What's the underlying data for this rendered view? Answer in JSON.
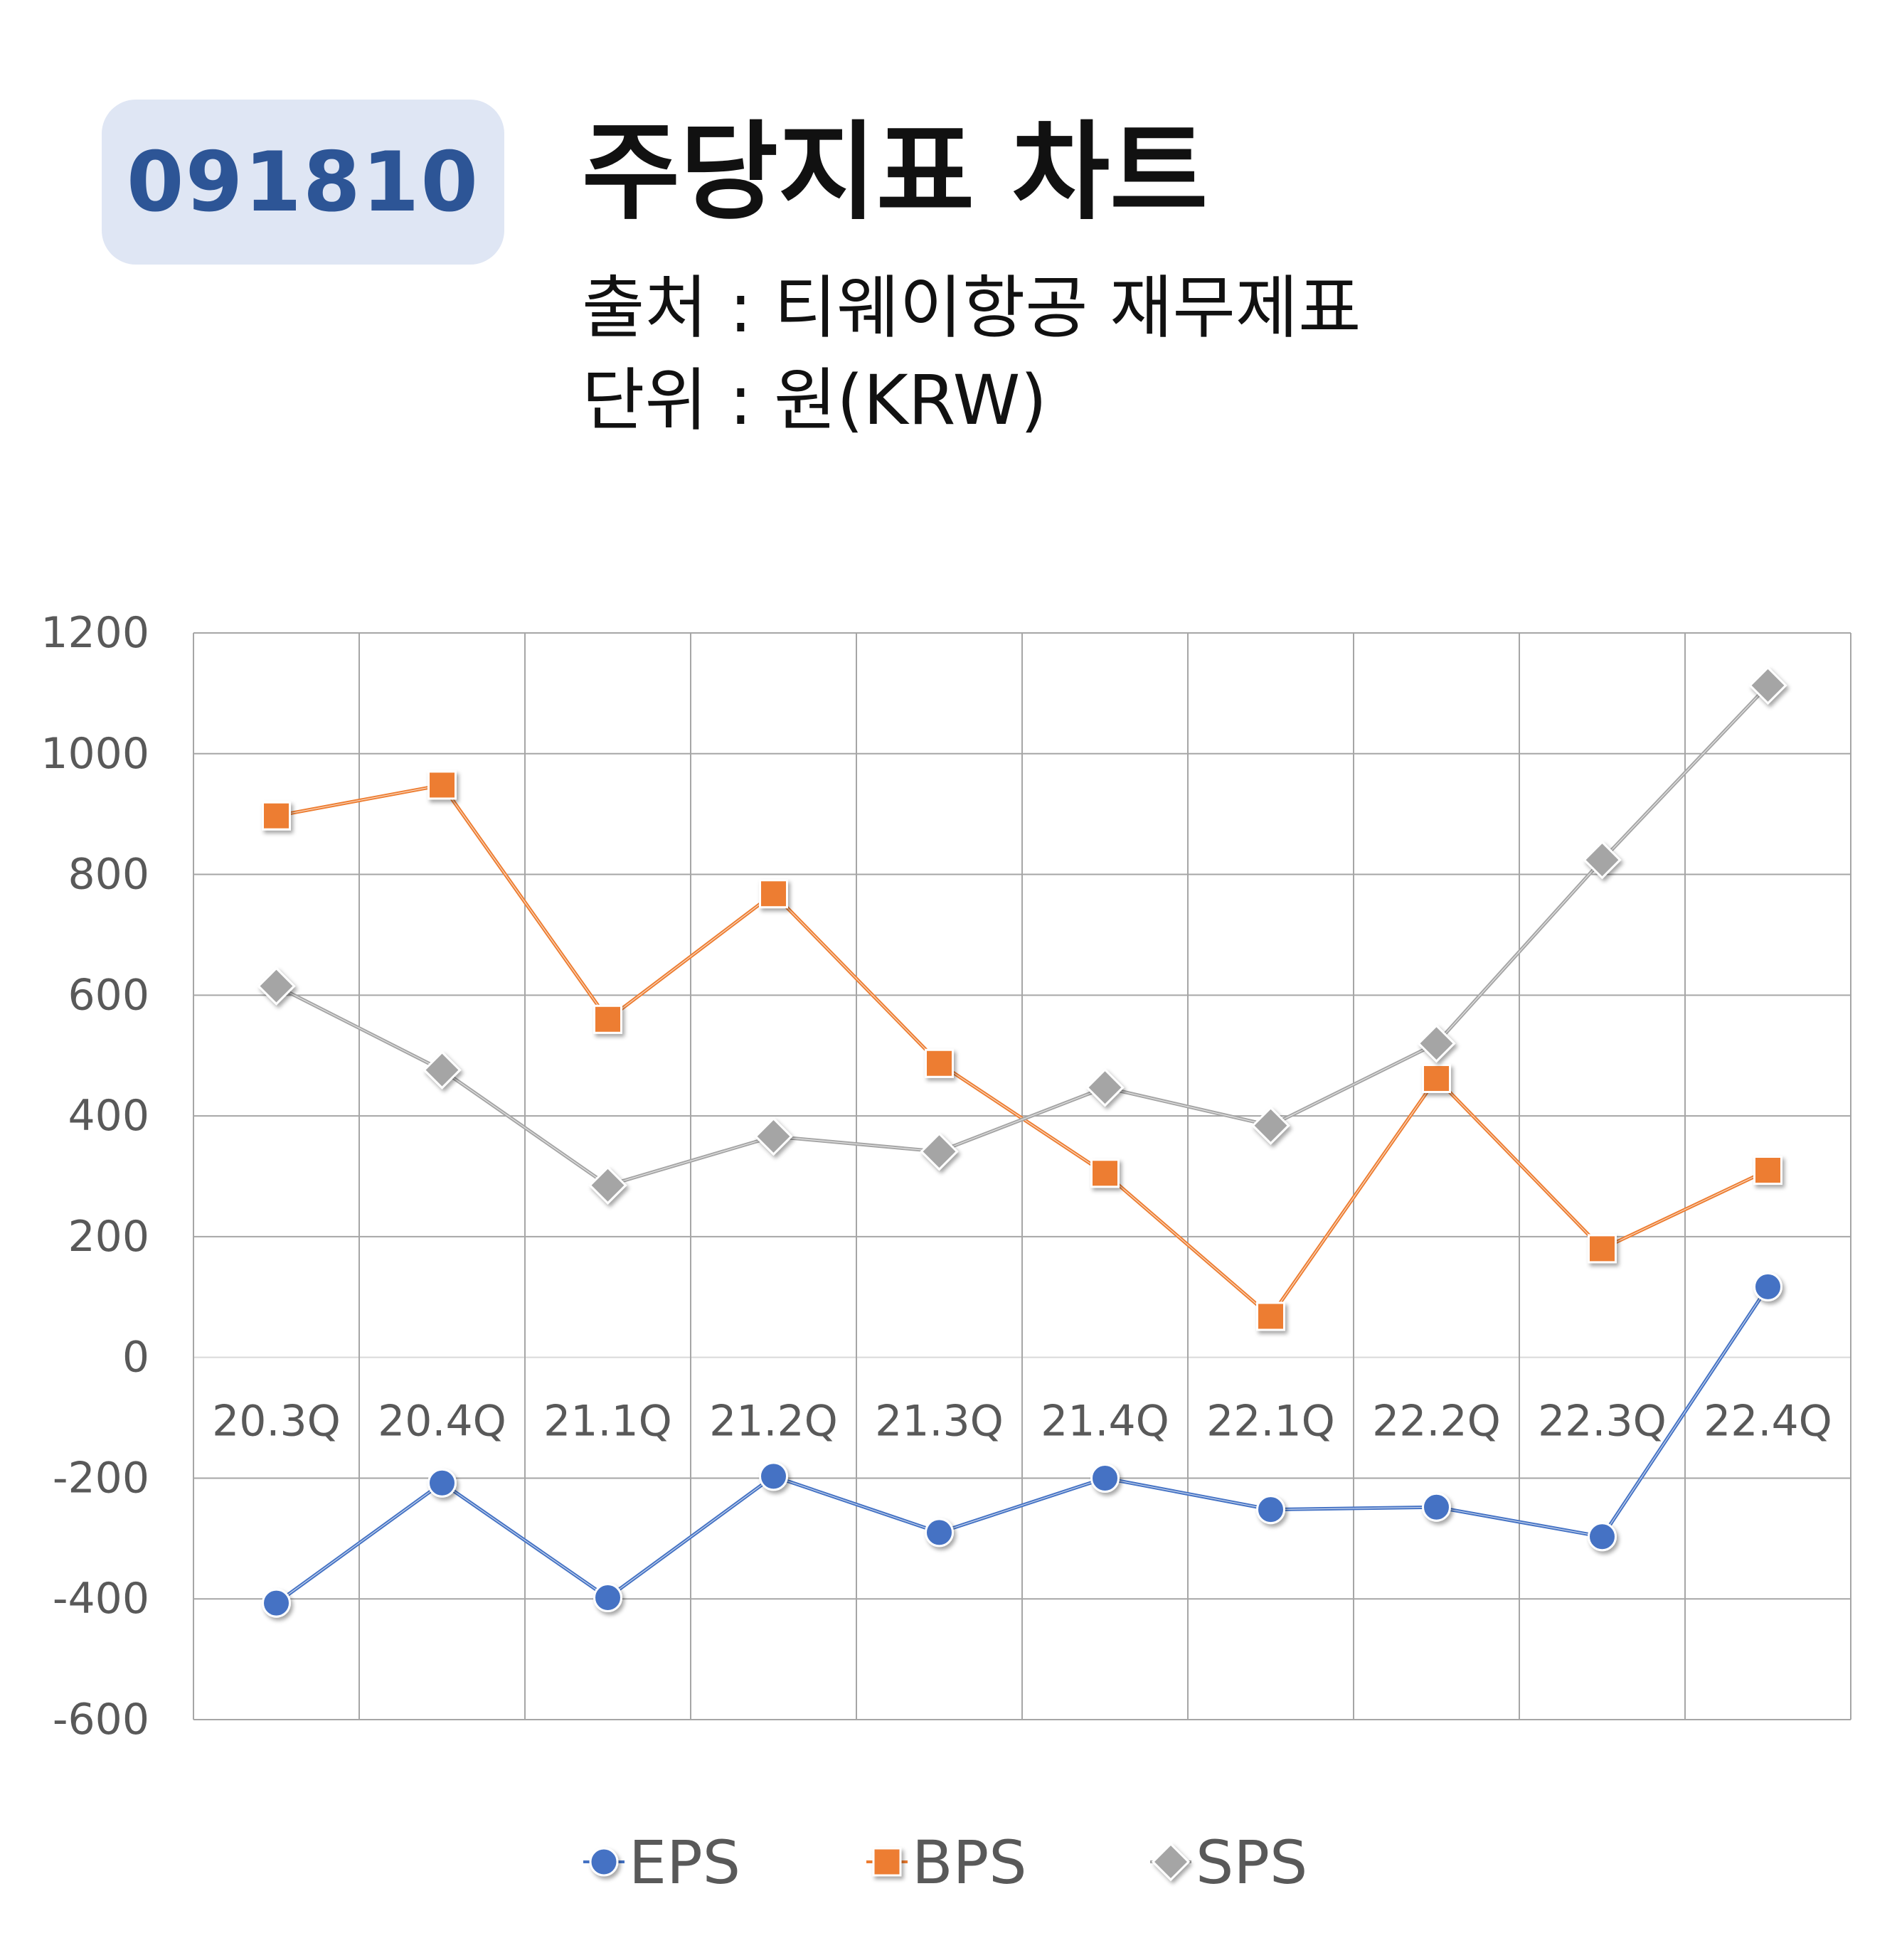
{
  "header": {
    "code": "091810",
    "title": "주당지표 차트",
    "source": "출처 : 티웨이항공 재무제표",
    "unit": "단위 : 원(KRW)"
  },
  "colors": {
    "badge_bg": "#dfe6f4",
    "badge_text": "#2d5596",
    "EPS": "#4472c4",
    "BPS": "#ed7d31",
    "SPS": "#a5a5a5",
    "grid": "#a6a6a6"
  },
  "chart_data": {
    "type": "line",
    "title": "",
    "xlabel": "",
    "ylabel": "",
    "categories": [
      "20.3Q",
      "20.4Q",
      "21.1Q",
      "21.2Q",
      "21.3Q",
      "21.4Q",
      "22.1Q",
      "22.2Q",
      "22.3Q",
      "22.4Q"
    ],
    "ylim": [
      -600,
      1200
    ],
    "yticks": [
      1200,
      1000,
      800,
      600,
      400,
      200,
      0,
      -200,
      -400,
      -600
    ],
    "grid": true,
    "legend_position": "bottom",
    "series": [
      {
        "name": "EPS",
        "marker": "circle",
        "values": [
          -407,
          -208,
          -398,
          -197,
          -290,
          -200,
          -252,
          -248,
          -297,
          117
        ]
      },
      {
        "name": "BPS",
        "marker": "square",
        "values": [
          897,
          948,
          560,
          768,
          487,
          305,
          68,
          462,
          180,
          310
        ]
      },
      {
        "name": "SPS",
        "marker": "diamond",
        "values": [
          615,
          476,
          285,
          366,
          341,
          447,
          384,
          520,
          824,
          1113
        ]
      }
    ]
  }
}
